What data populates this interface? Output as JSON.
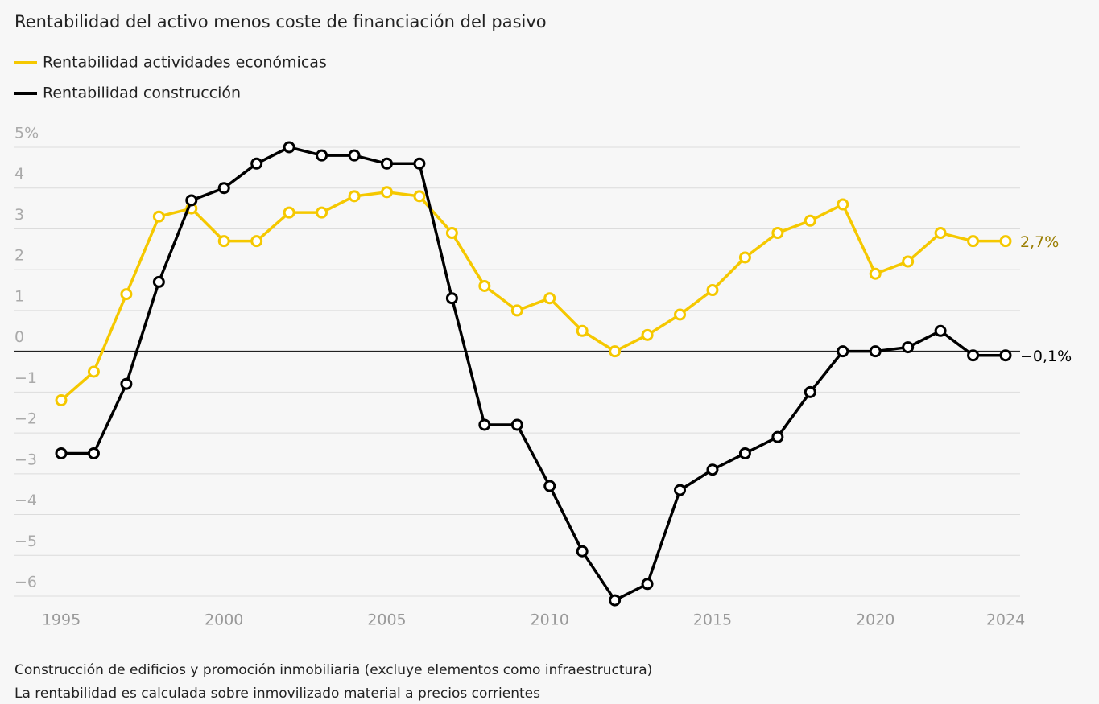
{
  "chart_data": {
    "type": "line",
    "title": "Rentabilidad del activo menos coste de financiación del pasivo",
    "x": [
      1995,
      1996,
      1997,
      1998,
      1999,
      2000,
      2001,
      2002,
      2003,
      2004,
      2005,
      2006,
      2007,
      2008,
      2009,
      2010,
      2011,
      2012,
      2013,
      2014,
      2015,
      2016,
      2017,
      2018,
      2019,
      2020,
      2021,
      2022,
      2023,
      2024
    ],
    "series": [
      {
        "name": "Rentabilidad actividades económicas",
        "color": "#f5c800",
        "label_color": "#9a7d00",
        "values": [
          -1.2,
          -0.5,
          1.4,
          3.3,
          3.5,
          2.7,
          2.7,
          3.4,
          3.4,
          3.8,
          3.9,
          3.8,
          2.9,
          1.6,
          1.0,
          1.3,
          0.5,
          0.0,
          0.4,
          0.9,
          1.5,
          2.3,
          2.9,
          3.2,
          3.6,
          1.9,
          2.2,
          2.9,
          2.7,
          2.7
        ],
        "value_labels": [
          null,
          null,
          null,
          null,
          null,
          null,
          null,
          null,
          null,
          null,
          null,
          null,
          null,
          null,
          null,
          null,
          null,
          null,
          null,
          null,
          null,
          null,
          null,
          null,
          null,
          null,
          null,
          null,
          null,
          "2,7%"
        ]
      },
      {
        "name": "Rentabilidad construcción",
        "color": "#000000",
        "label_color": "#000000",
        "values": [
          -2.5,
          -2.5,
          -0.8,
          1.7,
          3.7,
          4.0,
          4.6,
          5.0,
          4.8,
          4.8,
          4.6,
          4.6,
          1.3,
          -1.8,
          -1.8,
          -3.3,
          -4.9,
          -6.1,
          -5.7,
          -3.4,
          -2.9,
          -2.5,
          -2.1,
          -1.0,
          0.0,
          0.0,
          0.1,
          0.5,
          -0.1,
          -0.1
        ],
        "value_labels": [
          null,
          null,
          null,
          null,
          null,
          null,
          null,
          null,
          null,
          null,
          null,
          null,
          null,
          null,
          null,
          null,
          null,
          null,
          null,
          null,
          null,
          null,
          null,
          null,
          null,
          null,
          null,
          null,
          null,
          "−0,1%"
        ]
      }
    ],
    "xlim": [
      1995,
      2024
    ],
    "xticks": [
      1995,
      2000,
      2005,
      2010,
      2015,
      2020,
      2024
    ],
    "ylim": [
      -6,
      5
    ],
    "yticks": [
      {
        "value": 5,
        "label": "5%"
      },
      4,
      3,
      2,
      1,
      0,
      {
        "value": -1,
        "label": "−1"
      },
      {
        "value": -2,
        "label": "−2"
      },
      {
        "value": -3,
        "label": "−3"
      },
      {
        "value": -4,
        "label": "−4"
      },
      {
        "value": -5,
        "label": "−5"
      },
      {
        "value": -6,
        "label": "−6"
      }
    ],
    "grid": true,
    "notes": [
      "Construcción de edificios y promoción inmobiliaria (excluye elementos como infraestructura)",
      "La rentabilidad es calculada sobre inmovilizado material a precios corrientes"
    ]
  }
}
